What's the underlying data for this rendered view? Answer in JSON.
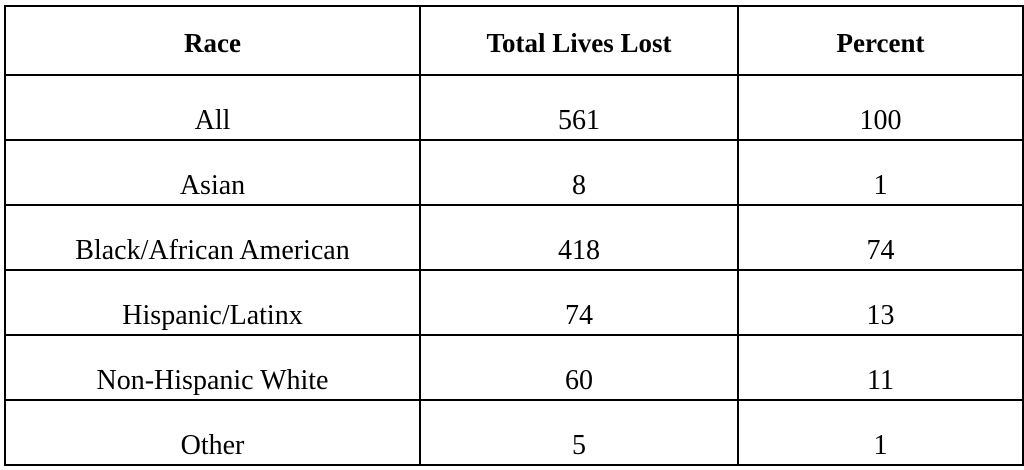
{
  "table": {
    "headers": [
      "Race",
      "Total Lives Lost",
      "Percent"
    ],
    "rows": [
      [
        "All",
        561,
        100
      ],
      [
        "Asian",
        8,
        1
      ],
      [
        "Black/African American",
        418,
        74
      ],
      [
        "Hispanic/Latinx",
        74,
        13
      ],
      [
        "Non-Hispanic White",
        60,
        11
      ],
      [
        "Other",
        5,
        1
      ]
    ]
  }
}
